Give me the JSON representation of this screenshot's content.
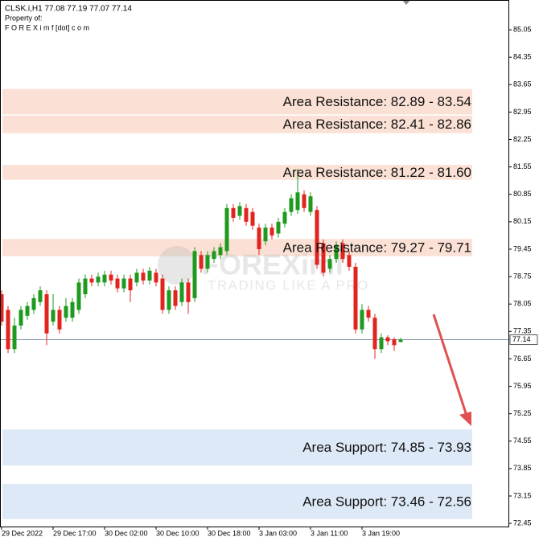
{
  "chart_data": {
    "type": "candlestick",
    "header": "CLSK.i,H1  77.08 77.19 77.07 77.14",
    "owner_line": "Property of:",
    "owner_site": "F O R E X i m f [dot] c o m",
    "watermark": "FOREXimf",
    "watermark_tagline": "TRADING LIKE A PRO",
    "bull_color": "#1f9a1f",
    "bear_color": "#e2241f",
    "categories": [
      "29 Dec 2022",
      null,
      null,
      null,
      null,
      null,
      null,
      null,
      "29 Dec 17:00",
      null,
      null,
      null,
      null,
      null,
      null,
      null,
      "30 Dec 02:00",
      null,
      null,
      null,
      null,
      null,
      null,
      null,
      "30 Dec 10:00",
      null,
      null,
      null,
      null,
      null,
      null,
      null,
      "30 Dec 18:00",
      null,
      null,
      null,
      null,
      null,
      null,
      null,
      "3 Jan 03:00",
      null,
      null,
      null,
      null,
      null,
      null,
      null,
      "3 Jan 11:00",
      null,
      null,
      null,
      null,
      null,
      null,
      null,
      "3 Jan 19:00",
      null,
      null,
      null,
      null,
      null,
      null
    ],
    "open": [
      78.3,
      77.9,
      76.9,
      77.5,
      77.75,
      77.9,
      78.1,
      78.3,
      77.6,
      77.9,
      77.7,
      77.7,
      77.9,
      78.3,
      78.7,
      78.6,
      78.6,
      78.8,
      78.7,
      78.45,
      78.7,
      78.6,
      78.85,
      78.65,
      78.85,
      78.7,
      77.9,
      78.4,
      78.1,
      78.6,
      78.2,
      79.3,
      78.95,
      79.2,
      79.3,
      79.4,
      80.5,
      80.3,
      80.5,
      80.4,
      80.0,
      79.65,
      80.0,
      79.85,
      80.1,
      80.4,
      80.45,
      80.85,
      80.4,
      80.45,
      79.6,
      78.95,
      79.2,
      79.6,
      79.3,
      79.0,
      77.4,
      77.9,
      77.7,
      76.9,
      77.2,
      77.15,
      77.08
    ],
    "high": [
      78.4,
      78.0,
      77.7,
      78.0,
      78.1,
      78.3,
      78.5,
      78.4,
      78.3,
      78.0,
      78.2,
      78.2,
      78.7,
      78.8,
      78.8,
      78.85,
      78.9,
      78.9,
      78.8,
      78.8,
      78.8,
      78.95,
      78.95,
      79.0,
      78.95,
      78.8,
      78.5,
      78.5,
      78.7,
      78.7,
      79.5,
      79.4,
      79.4,
      79.5,
      79.6,
      80.6,
      80.6,
      80.65,
      80.6,
      80.5,
      80.1,
      80.1,
      80.1,
      80.25,
      80.5,
      80.85,
      81.5,
      80.95,
      80.9,
      80.55,
      79.7,
      79.3,
      79.65,
      79.7,
      79.4,
      79.1,
      78.05,
      78.0,
      77.8,
      77.3,
      77.25,
      77.2,
      77.19
    ],
    "low": [
      77.5,
      76.8,
      76.8,
      77.4,
      77.65,
      77.8,
      78.0,
      77.0,
      77.5,
      77.3,
      77.6,
      77.6,
      77.8,
      78.2,
      78.5,
      78.5,
      78.5,
      78.55,
      78.35,
      78.35,
      78.1,
      78.5,
      78.55,
      78.55,
      78.5,
      77.8,
      77.8,
      77.9,
      78.0,
      77.8,
      78.1,
      78.85,
      78.85,
      79.1,
      79.2,
      79.3,
      80.15,
      80.2,
      80.05,
      79.95,
      79.3,
      79.55,
      79.7,
      79.75,
      80.0,
      80.3,
      80.35,
      80.4,
      80.3,
      78.95,
      78.75,
      78.85,
      79.1,
      79.1,
      78.9,
      77.3,
      77.3,
      77.6,
      76.65,
      76.8,
      77.0,
      76.85,
      77.07
    ],
    "close": [
      77.6,
      76.9,
      77.5,
      77.9,
      78.0,
      78.2,
      78.4,
      77.3,
      77.9,
      77.4,
      78.0,
      78.1,
      78.6,
      78.7,
      78.6,
      78.75,
      78.8,
      78.65,
      78.45,
      78.7,
      78.4,
      78.85,
      78.65,
      78.9,
      78.6,
      77.9,
      78.4,
      78.0,
      78.6,
      78.1,
      79.4,
      78.95,
      79.3,
      79.4,
      79.5,
      80.5,
      80.25,
      80.55,
      80.15,
      80.05,
      79.45,
      80.0,
      79.8,
      80.15,
      80.4,
      80.75,
      80.9,
      80.5,
      80.8,
      79.05,
      78.85,
      79.2,
      79.55,
      79.2,
      79.0,
      77.4,
      77.9,
      77.7,
      76.9,
      77.2,
      77.1,
      77.0,
      77.14
    ],
    "current_price": 77.14,
    "zones": [
      {
        "label": "Area Resistance: 82.89 - 83.54",
        "low": 82.89,
        "high": 83.54,
        "color": "#fbe1d5"
      },
      {
        "label": "Area Resistance: 82.41 - 82.86",
        "low": 82.41,
        "high": 82.86,
        "color": "#fbe1d5"
      },
      {
        "label": "Area Resistance: 81.22 - 81.60",
        "low": 81.22,
        "high": 81.6,
        "color": "#fbe1d5"
      },
      {
        "label": "Area Resistance: 79.27 - 79.71",
        "low": 79.27,
        "high": 79.71,
        "color": "#fbe1d5"
      },
      {
        "label": "Area Support: 74.85 - 73.93",
        "low": 73.93,
        "high": 74.85,
        "color": "#dde9f7"
      },
      {
        "label": "Area Support: 73.46 - 72.56",
        "low": 72.56,
        "high": 73.46,
        "color": "#dde9f7"
      }
    ],
    "ylim": [
      72.37,
      85.79
    ],
    "yticks": [
      85.05,
      84.35,
      83.65,
      82.95,
      82.25,
      81.55,
      80.85,
      80.15,
      79.45,
      78.75,
      78.05,
      77.35,
      76.65,
      75.95,
      75.25,
      74.55,
      73.85,
      73.15,
      72.45
    ]
  }
}
